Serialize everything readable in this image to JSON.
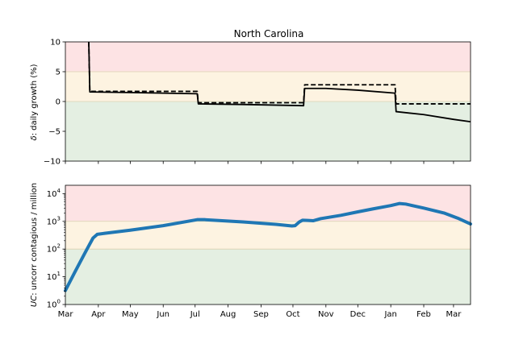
{
  "chart_data": [
    {
      "type": "line",
      "title": "North Carolina",
      "ylabel_symbol": "δ",
      "ylabel_rest": ": daily growth (%)",
      "ylim": [
        -10,
        10
      ],
      "yticks": [
        -10,
        -5,
        0,
        5,
        10
      ],
      "bands": [
        {
          "from": 5,
          "to": 10,
          "color": "#fde3e4"
        },
        {
          "from": 0,
          "to": 5,
          "color": "#fdf3e1"
        },
        {
          "from": -10,
          "to": 0,
          "color": "#e4efe2"
        }
      ],
      "series": [
        {
          "style": "solid",
          "points": [
            [
              "2020-03-23",
              10
            ],
            [
              "2020-03-24",
              1.6
            ],
            [
              "2020-05-01",
              1.5
            ],
            [
              "2020-06-01",
              1.4
            ],
            [
              "2020-07-03",
              1.3
            ],
            [
              "2020-07-04",
              -0.4
            ],
            [
              "2020-08-15",
              -0.5
            ],
            [
              "2020-10-11",
              -0.7
            ],
            [
              "2020-10-12",
              2.2
            ],
            [
              "2020-11-01",
              2.2
            ],
            [
              "2020-12-01",
              1.9
            ],
            [
              "2021-01-05",
              1.4
            ],
            [
              "2021-01-06",
              -1.7
            ],
            [
              "2021-02-01",
              -2.2
            ],
            [
              "2021-03-01",
              -3.0
            ],
            [
              "2021-03-17",
              -3.4
            ]
          ]
        },
        {
          "style": "dashed",
          "points": [
            [
              "2020-03-23",
              10
            ],
            [
              "2020-03-24",
              1.7
            ],
            [
              "2020-07-03",
              1.7
            ],
            [
              "2020-07-04",
              -0.2
            ],
            [
              "2020-10-11",
              -0.2
            ],
            [
              "2020-10-12",
              2.8
            ],
            [
              "2021-01-05",
              2.8
            ],
            [
              "2021-01-06",
              -0.4
            ],
            [
              "2021-03-17",
              -0.4
            ]
          ]
        }
      ]
    },
    {
      "type": "line",
      "scale": "log",
      "ylabel_symbol": "UC",
      "ylabel_rest": ": uncorr contagious / million",
      "ylim": [
        1,
        20000
      ],
      "yticks": [
        {
          "v": 1,
          "b": "10",
          "e": "0"
        },
        {
          "v": 10,
          "b": "10",
          "e": "1"
        },
        {
          "v": 100,
          "b": "10",
          "e": "2"
        },
        {
          "v": 1000,
          "b": "10",
          "e": "3"
        },
        {
          "v": 10000,
          "b": "10",
          "e": "4"
        }
      ],
      "bands": [
        {
          "from": 1000,
          "to": 20000,
          "color": "#fde3e4"
        },
        {
          "from": 100,
          "to": 1000,
          "color": "#fdf3e1"
        },
        {
          "from": 1,
          "to": 100,
          "color": "#e4efe2"
        }
      ],
      "series": [
        {
          "color": "#1f77b4",
          "points": [
            [
              "2020-03-01",
              3.2
            ],
            [
              "2020-03-10",
              15
            ],
            [
              "2020-03-20",
              80
            ],
            [
              "2020-03-27",
              250
            ],
            [
              "2020-03-31",
              340
            ],
            [
              "2020-04-07",
              370
            ],
            [
              "2020-05-01",
              480
            ],
            [
              "2020-06-01",
              700
            ],
            [
              "2020-07-03",
              1150
            ],
            [
              "2020-07-10",
              1150
            ],
            [
              "2020-08-15",
              950
            ],
            [
              "2020-09-15",
              780
            ],
            [
              "2020-09-30",
              680
            ],
            [
              "2020-10-03",
              700
            ],
            [
              "2020-10-07",
              950
            ],
            [
              "2020-10-10",
              1100
            ],
            [
              "2020-10-15",
              1080
            ],
            [
              "2020-10-20",
              1050
            ],
            [
              "2020-10-27",
              1250
            ],
            [
              "2020-11-15",
              1650
            ],
            [
              "2020-12-01",
              2200
            ],
            [
              "2020-12-15",
              2800
            ],
            [
              "2021-01-01",
              3700
            ],
            [
              "2021-01-09",
              4400
            ],
            [
              "2021-01-15",
              4200
            ],
            [
              "2021-02-01",
              3000
            ],
            [
              "2021-02-20",
              2000
            ],
            [
              "2021-03-05",
              1300
            ],
            [
              "2021-03-17",
              800
            ]
          ]
        }
      ]
    }
  ],
  "x_axis": {
    "start": "2020-03-01",
    "end": "2021-03-17",
    "ticks": [
      {
        "date": "2020-03-01",
        "label": "Mar"
      },
      {
        "date": "2020-04-01",
        "label": "Apr"
      },
      {
        "date": "2020-05-01",
        "label": "May"
      },
      {
        "date": "2020-06-01",
        "label": "Jun"
      },
      {
        "date": "2020-07-01",
        "label": "Jul"
      },
      {
        "date": "2020-08-01",
        "label": "Aug"
      },
      {
        "date": "2020-09-01",
        "label": "Sep"
      },
      {
        "date": "2020-10-01",
        "label": "Oct"
      },
      {
        "date": "2020-11-01",
        "label": "Nov"
      },
      {
        "date": "2020-12-01",
        "label": "Dec"
      },
      {
        "date": "2021-01-01",
        "label": "Jan"
      },
      {
        "date": "2021-02-01",
        "label": "Feb"
      },
      {
        "date": "2021-03-01",
        "label": "Mar"
      }
    ]
  }
}
